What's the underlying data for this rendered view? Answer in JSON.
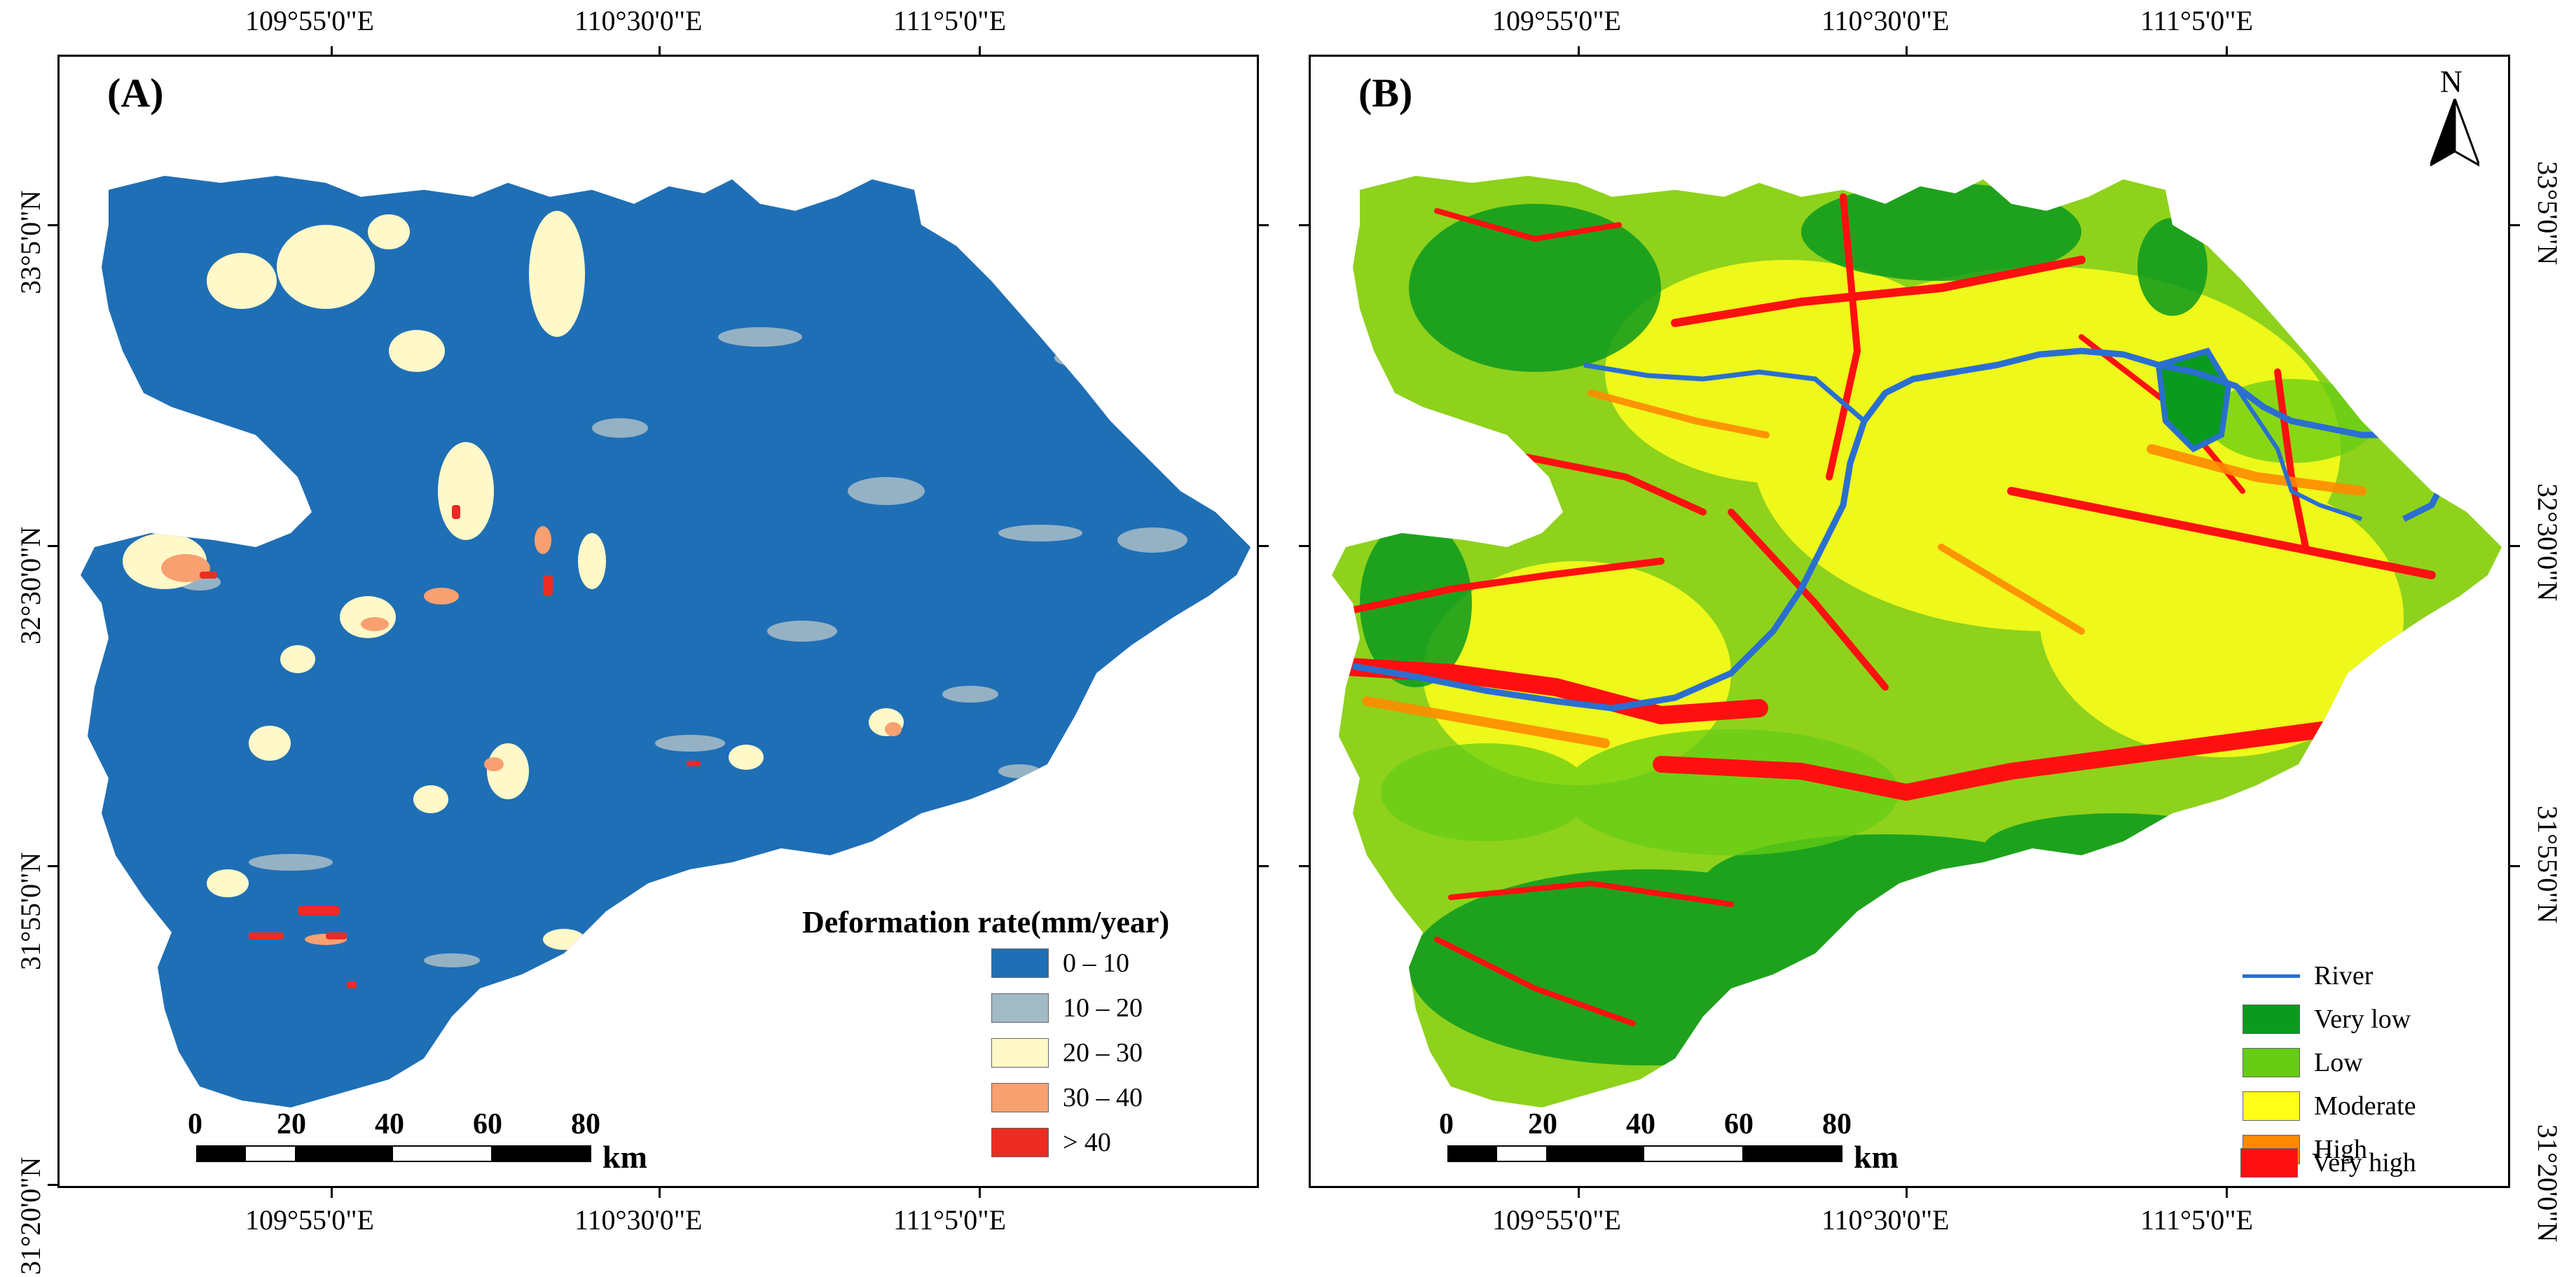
{
  "top_lon_labels": [
    "109°55'0\"E",
    "110°30'0\"E",
    "111°5'0\"E"
  ],
  "bottom_lon_labels": [
    "109°55'0\"E",
    "110°30'0\"E",
    "111°5'0\"E"
  ],
  "lat_labels": [
    "33°5'0\"N",
    "32°30'0\"N",
    "31°55'0\"N",
    "31°20'0\"N"
  ],
  "panel_a": {
    "label": "(A)",
    "legend_title": "Deformation rate(mm/year)",
    "legend": [
      {
        "label": "0 – 10",
        "color": "#1f6fb6"
      },
      {
        "label": "10 – 20",
        "color": "#a2b9c6"
      },
      {
        "label": "20 – 30",
        "color": "#fff8c8"
      },
      {
        "label": "30 – 40",
        "color": "#f9a070"
      },
      {
        "label": "> 40",
        "color": "#ee2b22"
      }
    ]
  },
  "panel_b": {
    "label": "(B)",
    "north_label": "N",
    "legend": [
      {
        "label": "River",
        "type": "line",
        "color": "#2a6fd0"
      },
      {
        "label": "Very low",
        "color": "#0a9a1e"
      },
      {
        "label": "Low",
        "color": "#66cc14"
      },
      {
        "label": "Moderate",
        "color": "#ffff1a"
      },
      {
        "label": "High",
        "color": "#ff8a00"
      },
      {
        "label": "Very high",
        "color": "#ff1010"
      }
    ]
  },
  "scale_bar": {
    "ticks": [
      "0",
      "20",
      "40",
      "60",
      "80"
    ],
    "unit": "km"
  }
}
